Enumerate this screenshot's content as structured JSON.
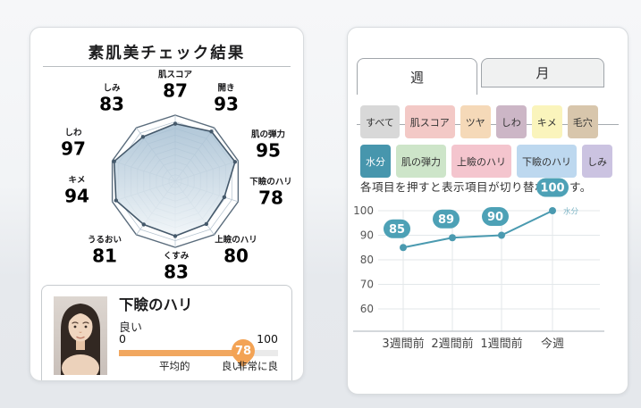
{
  "page": {
    "background_top": "#f6f7f9",
    "background_bottom": "#e5e8ec"
  },
  "left_card": {
    "title": "素肌美チェック結果",
    "detail_panel": {
      "metric": "下瞼のハリ",
      "rating": "良い",
      "score": "78",
      "scale_min": "0",
      "scale_max": "100",
      "tick_labels": [
        "平均的",
        "良い",
        "非常に良"
      ],
      "photo_icon": "woman-portrait-photo"
    }
  },
  "right_card": {
    "tabs": [
      {
        "key": "week",
        "label": "週",
        "active": true
      },
      {
        "key": "month",
        "label": "月",
        "active": false
      }
    ],
    "chip_rows": [
      [
        {
          "key": "all",
          "label": "すべて",
          "bg": "#d8d8d8",
          "fg": "#333333",
          "selected": false
        },
        {
          "key": "skin-score",
          "label": "肌スコア",
          "bg": "#f3c9c6",
          "fg": "#333333",
          "selected": false
        },
        {
          "key": "gloss",
          "label": "ツヤ",
          "bg": "#f5d9b8",
          "fg": "#333333",
          "selected": false
        },
        {
          "key": "wrinkles",
          "label": "しわ",
          "bg": "#ccb6c6",
          "fg": "#333333",
          "selected": false
        },
        {
          "key": "texture",
          "label": "キメ",
          "bg": "#faf4bc",
          "fg": "#333333",
          "selected": false
        },
        {
          "key": "pores",
          "label": "毛穴",
          "bg": "#d8c6ac",
          "fg": "#333333",
          "selected": false
        }
      ],
      [
        {
          "key": "moisture",
          "label": "水分",
          "bg": "#4796ad",
          "fg": "#ffffff",
          "selected": true
        },
        {
          "key": "elasticity",
          "label": "肌の弾力",
          "bg": "#cde5c9",
          "fg": "#333333",
          "selected": false
        },
        {
          "key": "upper-eyelid-firmness",
          "label": "上瞼のハリ",
          "bg": "#f4c5ce",
          "fg": "#333333",
          "selected": false
        },
        {
          "key": "lower-eyelid-firmness",
          "label": "下瞼のハリ",
          "bg": "#bdd8ef",
          "fg": "#333333",
          "selected": false
        },
        {
          "key": "spots",
          "label": "しみ",
          "bg": "#cbc3e1",
          "fg": "#333333",
          "selected": false
        }
      ]
    ],
    "note": "各項目を押すと表示項目が切り替わります。"
  },
  "chart_data": [
    {
      "type": "radar",
      "title": "素肌美チェック結果",
      "max": 100,
      "categories": [
        "肌スコア",
        "開き",
        "肌の弾力",
        "下瞼のハリ",
        "上瞼のハリ",
        "くすみ",
        "うるおい",
        "キメ",
        "しわ",
        "しみ"
      ],
      "values": [
        87,
        93,
        95,
        78,
        80,
        83,
        81,
        94,
        97,
        83
      ],
      "rings": 10
    },
    {
      "type": "line",
      "categories": [
        "3週間前",
        "2週間前",
        "1週間前",
        "今週"
      ],
      "series": [
        {
          "name": "水分",
          "values": [
            85,
            89,
            90,
            100
          ]
        }
      ],
      "yticks": [
        100,
        90,
        80,
        70,
        60
      ],
      "ylim": [
        60,
        100
      ],
      "grid": true,
      "annotation": "水分",
      "legend_position": "end-of-line"
    }
  ],
  "colors": {
    "accent_teal": "#4a9ab0",
    "bubble_teal": "#4da1b6",
    "annotation_teal": "#7db4c4",
    "orange_fill": "#f1a75f",
    "orange_pin": "#f3a355",
    "grid_line": "#e3e7ea",
    "axis_line": "#c6cbcf",
    "tick_text": "#555555",
    "xlabel_text": "#444444",
    "radar_stroke": "#45596b",
    "radar_ring": "#b7c5d1",
    "radar_outer": "#5a6c7c",
    "radar_fill_top": "#a3bdd1",
    "radar_fill_bottom": "#f0f5f8"
  }
}
